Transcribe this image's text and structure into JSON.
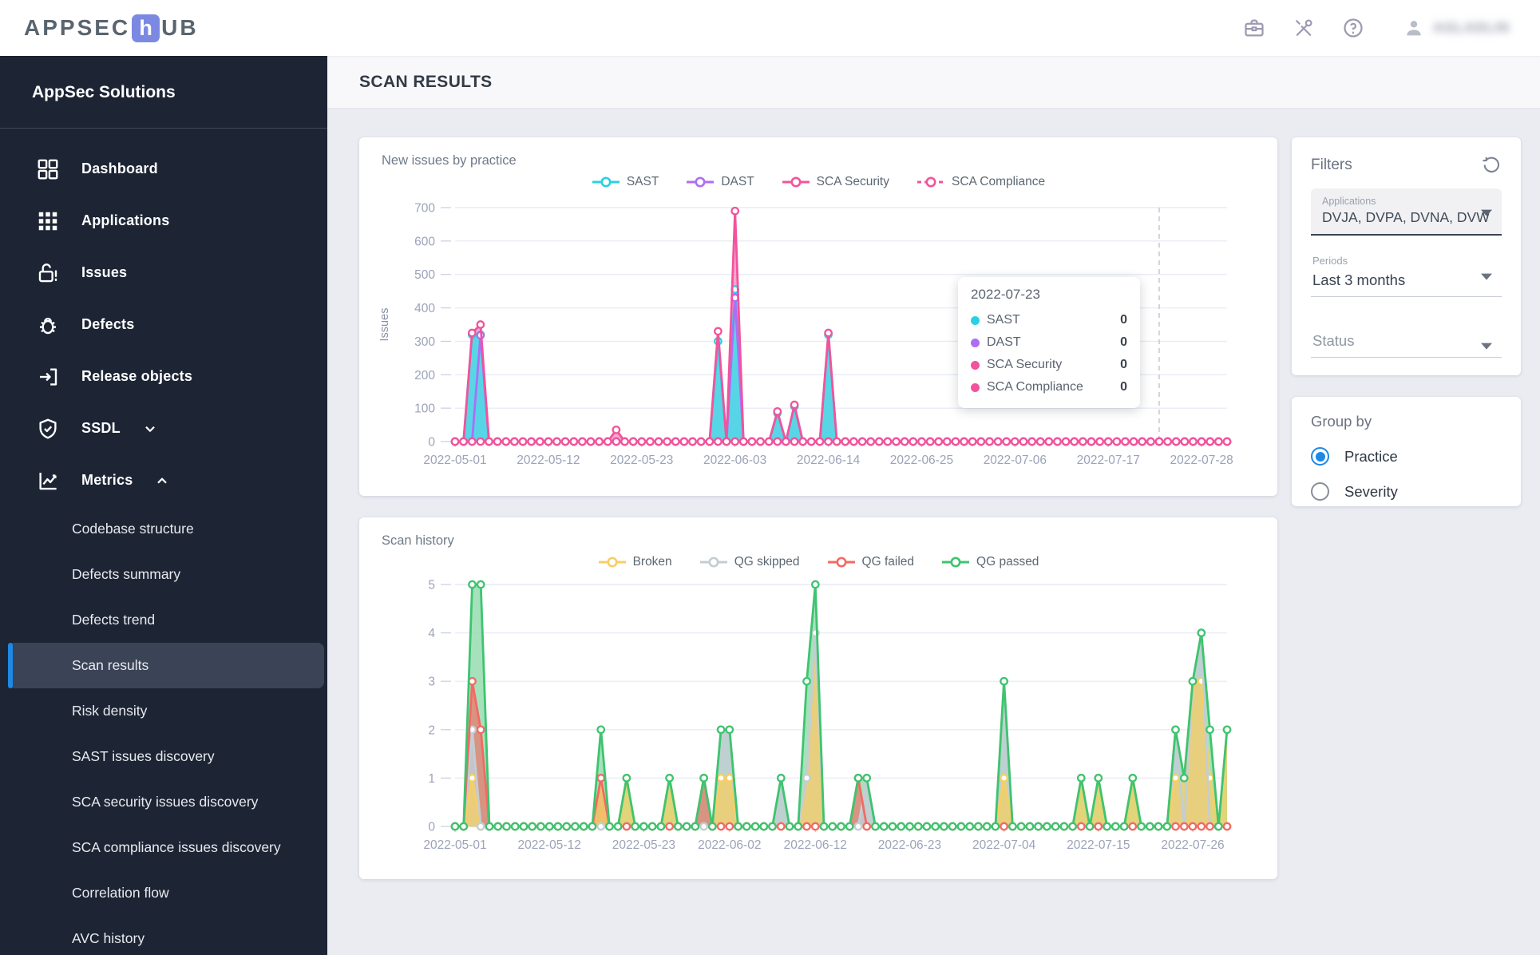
{
  "brand": {
    "logo_prefix": "APPSEC",
    "logo_h": "h",
    "logo_suffix": "UB"
  },
  "header": {
    "icons": [
      "briefcase",
      "tools",
      "help"
    ],
    "user_label_blurred": "AGLADLIN"
  },
  "sidebar": {
    "title": "AppSec Solutions",
    "items": [
      {
        "label": "Dashboard",
        "icon": "dashboard"
      },
      {
        "label": "Applications",
        "icon": "apps"
      },
      {
        "label": "Issues",
        "icon": "lock-open-alert"
      },
      {
        "label": "Defects",
        "icon": "bug"
      },
      {
        "label": "Release objects",
        "icon": "exit-to-app"
      },
      {
        "label": "SSDL",
        "icon": "shield-check",
        "chevron": "down"
      },
      {
        "label": "Metrics",
        "icon": "chart-line",
        "chevron": "up"
      }
    ],
    "metrics_children": [
      {
        "label": "Codebase structure",
        "active": false
      },
      {
        "label": "Defects summary",
        "active": false
      },
      {
        "label": "Defects trend",
        "active": false
      },
      {
        "label": "Scan results",
        "active": true
      },
      {
        "label": "Risk density",
        "active": false
      },
      {
        "label": "SAST issues discovery",
        "active": false
      },
      {
        "label": "SCA security issues discovery",
        "active": false
      },
      {
        "label": "SCA compliance issues discovery",
        "active": false
      },
      {
        "label": "Correlation flow",
        "active": false
      },
      {
        "label": "AVC history",
        "active": false
      }
    ]
  },
  "page": {
    "title": "SCAN RESULTS"
  },
  "filters": {
    "title": "Filters",
    "applications": {
      "label": "Applications",
      "value": "DVJA, DVPA, DVNA, DVW..."
    },
    "periods": {
      "label": "Periods",
      "value": "Last 3 months"
    },
    "status": {
      "placeholder": "Status"
    }
  },
  "group_by": {
    "title": "Group by",
    "options": [
      {
        "label": "Practice",
        "selected": true
      },
      {
        "label": "Severity",
        "selected": false
      }
    ]
  },
  "chart_data": [
    {
      "type": "area",
      "title": "New issues by practice",
      "ylabel": "Issues",
      "ylim": [
        0,
        700
      ],
      "ytick_step": 100,
      "grid": true,
      "legend_position": "top-center",
      "start_date": "2022-05-01",
      "days": 92,
      "x_ticks": [
        {
          "i": 0,
          "label": "2022-05-01"
        },
        {
          "i": 11,
          "label": "2022-05-12"
        },
        {
          "i": 22,
          "label": "2022-05-23"
        },
        {
          "i": 33,
          "label": "2022-06-03"
        },
        {
          "i": 44,
          "label": "2022-06-14"
        },
        {
          "i": 55,
          "label": "2022-06-25"
        },
        {
          "i": 66,
          "label": "2022-07-06"
        },
        {
          "i": 77,
          "label": "2022-07-17"
        },
        {
          "i": 88,
          "label": "2022-07-28"
        }
      ],
      "hover_line_day": 83,
      "fill_order": [
        2,
        1,
        0,
        3
      ],
      "line_order": [
        0,
        1,
        2,
        3
      ],
      "series": [
        {
          "name": "SAST",
          "color": "#2ad0e2",
          "fill": "#4cd9e7",
          "fill_opacity": 0.93,
          "dashed": false,
          "points": {
            "2": 320,
            "3": 320,
            "31": 300,
            "33": 455,
            "38": 85,
            "40": 105,
            "44": 320
          }
        },
        {
          "name": "DAST",
          "color": "#ad6ef6",
          "fill": "#ad6ef6",
          "fill_opacity": 0.3,
          "dashed": false,
          "points": {
            "3": 318,
            "33": 430
          }
        },
        {
          "name": "SCA Security",
          "color": "#f3539c",
          "fill": "#f3539c",
          "fill_opacity": 0.5,
          "dashed": false,
          "points": {
            "2": 325,
            "3": 350,
            "19": 35,
            "31": 330,
            "33": 690,
            "38": 90,
            "40": 110,
            "44": 325
          }
        },
        {
          "name": "SCA Compliance",
          "color": "#f3539c",
          "fill": "none",
          "fill_opacity": 0,
          "dashed": true,
          "points": {}
        }
      ],
      "tooltip": {
        "title": "2022-07-23",
        "rows": [
          {
            "label": "SAST",
            "color": "#2ad0e2",
            "value": "0"
          },
          {
            "label": "DAST",
            "color": "#ad6ef6",
            "value": "0"
          },
          {
            "label": "SCA Security",
            "color": "#f3539c",
            "value": "0"
          },
          {
            "label": "SCA Compliance",
            "color": "#f3539c",
            "value": "0"
          }
        ]
      }
    },
    {
      "type": "area",
      "title": "Scan history",
      "ylabel": "",
      "ylim": [
        0,
        5
      ],
      "ytick_step": 1,
      "grid": true,
      "legend_position": "top-center",
      "start_date": "2022-05-01",
      "days": 91,
      "x_ticks": [
        {
          "i": 0,
          "label": "2022-05-01"
        },
        {
          "i": 11,
          "label": "2022-05-12"
        },
        {
          "i": 22,
          "label": "2022-05-23"
        },
        {
          "i": 32,
          "label": "2022-06-02"
        },
        {
          "i": 42,
          "label": "2022-06-12"
        },
        {
          "i": 53,
          "label": "2022-06-23"
        },
        {
          "i": 64,
          "label": "2022-07-04"
        },
        {
          "i": 75,
          "label": "2022-07-15"
        },
        {
          "i": 86,
          "label": "2022-07-26"
        }
      ],
      "hover_line_day": null,
      "fill_order": [
        3,
        2,
        1,
        0
      ],
      "line_order": [
        0,
        1,
        2,
        3
      ],
      "series": [
        {
          "name": "Broken",
          "color": "#f6cf63",
          "fill": "#f6cf63",
          "fill_opacity": 0.75,
          "dashed": false,
          "points": {
            "2": 1,
            "17": 1,
            "20": 1,
            "25": 1,
            "31": 1,
            "32": 1,
            "41": 1,
            "42": 4,
            "64": 1,
            "73": 1,
            "75": 1,
            "79": 1,
            "84": 1,
            "85": 1,
            "86": 3,
            "87": 3,
            "88": 1,
            "90": 2
          }
        },
        {
          "name": "QG skipped",
          "color": "#c3cdd4",
          "fill": "#c3cdd4",
          "fill_opacity": 0.85,
          "dashed": false,
          "points": {
            "2": 2,
            "31": 2,
            "32": 2,
            "38": 1,
            "41": 1,
            "42": 4,
            "48": 1,
            "64": 3,
            "84": 2,
            "86": 3,
            "87": 4
          }
        },
        {
          "name": "QG failed",
          "color": "#f26a64",
          "fill": "#f26a64",
          "fill_opacity": 0.65,
          "dashed": false,
          "points": {
            "2": 3,
            "3": 2,
            "17": 1,
            "29": 1,
            "47": 1
          }
        },
        {
          "name": "QG passed",
          "color": "#3ec46f",
          "fill": "#8edbaa",
          "fill_opacity": 0.8,
          "dashed": false,
          "points": {
            "2": 5,
            "3": 5,
            "17": 2,
            "20": 1,
            "25": 1,
            "29": 1,
            "31": 2,
            "32": 2,
            "38": 1,
            "41": 3,
            "42": 5,
            "47": 1,
            "48": 1,
            "64": 3,
            "73": 1,
            "75": 1,
            "79": 1,
            "84": 2,
            "85": 1,
            "86": 3,
            "87": 4,
            "88": 2,
            "90": 2
          }
        }
      ]
    }
  ]
}
